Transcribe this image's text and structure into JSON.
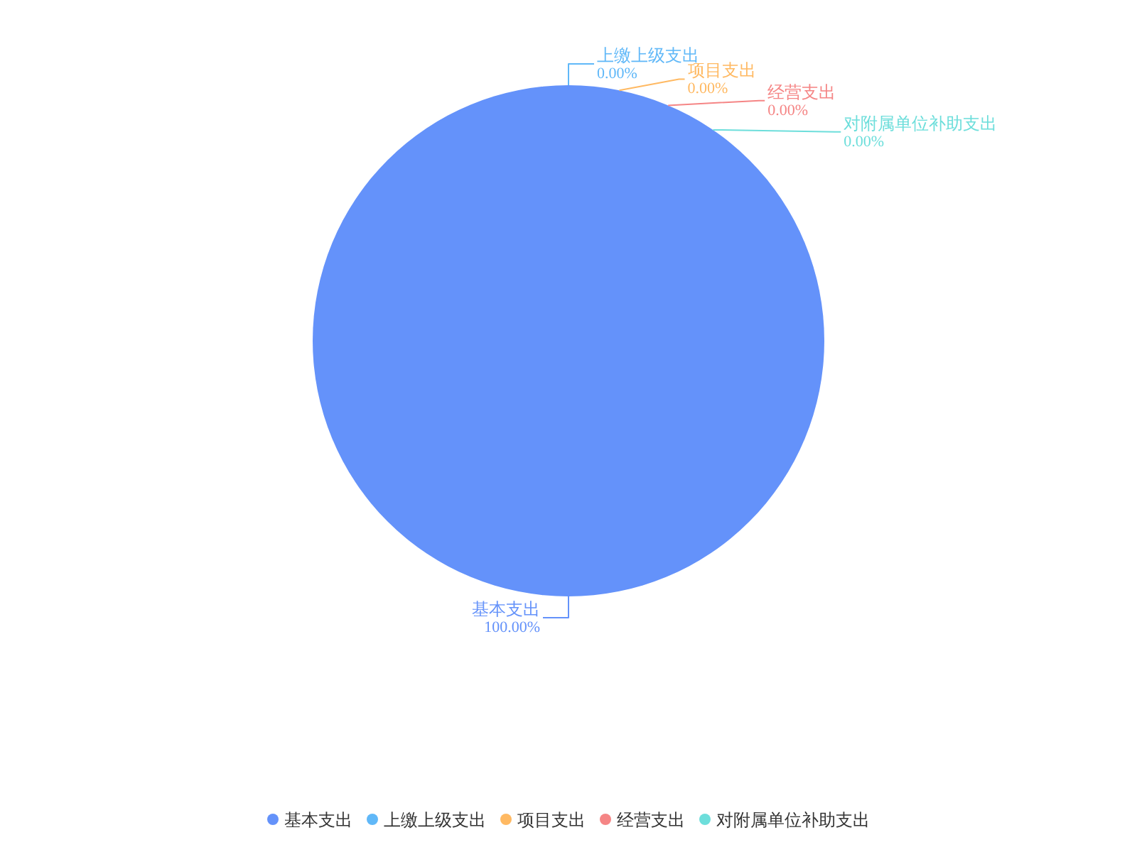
{
  "chart_data": {
    "type": "pie",
    "categories": [
      "基本支出",
      "上缴上级支出",
      "项目支出",
      "经营支出",
      "对附属单位补助支出"
    ],
    "values": [
      100,
      0,
      0,
      0,
      0
    ],
    "colors": [
      "#6492fa",
      "#60b8f8",
      "#ffb962",
      "#f58585",
      "#6ddedb"
    ],
    "value_labels": [
      "100.00%",
      "0.00%",
      "0.00%",
      "0.00%",
      "0.00%"
    ],
    "legend": "bottom"
  }
}
